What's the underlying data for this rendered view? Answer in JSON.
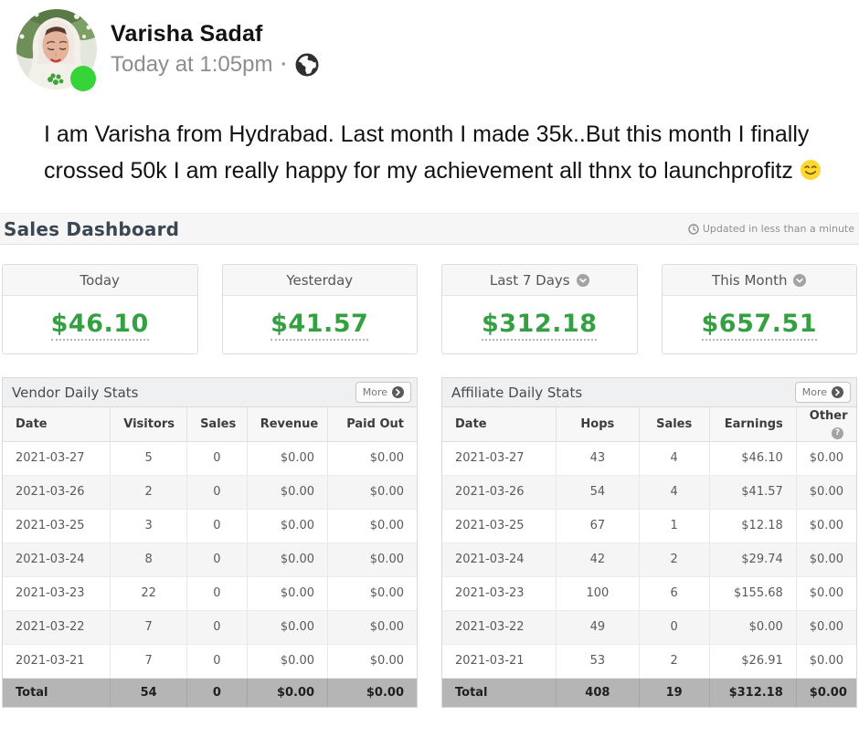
{
  "post": {
    "author": "Varisha Sadaf",
    "timestamp": "Today at 1:05pm",
    "separator": "·",
    "privacy_icon": "globe-icon",
    "status": "online",
    "body": "I am Varisha from Hydrabad. Last month I made 35k..But this month I finally crossed 50k I am really happy for my achievement all thnx to launchprofitz",
    "emoji": "smiling-face"
  },
  "dashboard": {
    "title": "Sales Dashboard",
    "updated_label": "Updated in less than a minute",
    "more_label": "More",
    "cards": [
      {
        "label": "Today",
        "value": "$46.10",
        "has_dropdown": false
      },
      {
        "label": "Yesterday",
        "value": "$41.57",
        "has_dropdown": false
      },
      {
        "label": "Last 7 Days",
        "value": "$312.18",
        "has_dropdown": true
      },
      {
        "label": "This Month",
        "value": "$657.51",
        "has_dropdown": true
      }
    ],
    "vendor": {
      "title": "Vendor Daily Stats",
      "columns": [
        "Date",
        "Visitors",
        "Sales",
        "Revenue",
        "Paid Out"
      ],
      "last_col_help": false,
      "rows": [
        [
          "2021-03-27",
          "5",
          "0",
          "$0.00",
          "$0.00"
        ],
        [
          "2021-03-26",
          "2",
          "0",
          "$0.00",
          "$0.00"
        ],
        [
          "2021-03-25",
          "3",
          "0",
          "$0.00",
          "$0.00"
        ],
        [
          "2021-03-24",
          "8",
          "0",
          "$0.00",
          "$0.00"
        ],
        [
          "2021-03-23",
          "22",
          "0",
          "$0.00",
          "$0.00"
        ],
        [
          "2021-03-22",
          "7",
          "0",
          "$0.00",
          "$0.00"
        ],
        [
          "2021-03-21",
          "7",
          "0",
          "$0.00",
          "$0.00"
        ]
      ],
      "total": [
        "Total",
        "54",
        "0",
        "$0.00",
        "$0.00"
      ]
    },
    "affiliate": {
      "title": "Affiliate Daily Stats",
      "columns": [
        "Date",
        "Hops",
        "Sales",
        "Earnings",
        "Other"
      ],
      "last_col_help": true,
      "help_icon": "question-circle-icon",
      "rows": [
        [
          "2021-03-27",
          "43",
          "4",
          "$46.10",
          "$0.00"
        ],
        [
          "2021-03-26",
          "54",
          "4",
          "$41.57",
          "$0.00"
        ],
        [
          "2021-03-25",
          "67",
          "1",
          "$12.18",
          "$0.00"
        ],
        [
          "2021-03-24",
          "42",
          "2",
          "$29.74",
          "$0.00"
        ],
        [
          "2021-03-23",
          "100",
          "6",
          "$155.68",
          "$0.00"
        ],
        [
          "2021-03-22",
          "49",
          "0",
          "$0.00",
          "$0.00"
        ],
        [
          "2021-03-21",
          "53",
          "2",
          "$26.91",
          "$0.00"
        ]
      ],
      "total": [
        "Total",
        "408",
        "19",
        "$312.18",
        "$0.00"
      ]
    }
  },
  "colors": {
    "accent_green": "#34a042",
    "online_green": "#35d438",
    "total_row_bg": "#b5b5b5",
    "panel_header_bg": "#eef0f1",
    "muted_text": "#8f8f8f"
  }
}
